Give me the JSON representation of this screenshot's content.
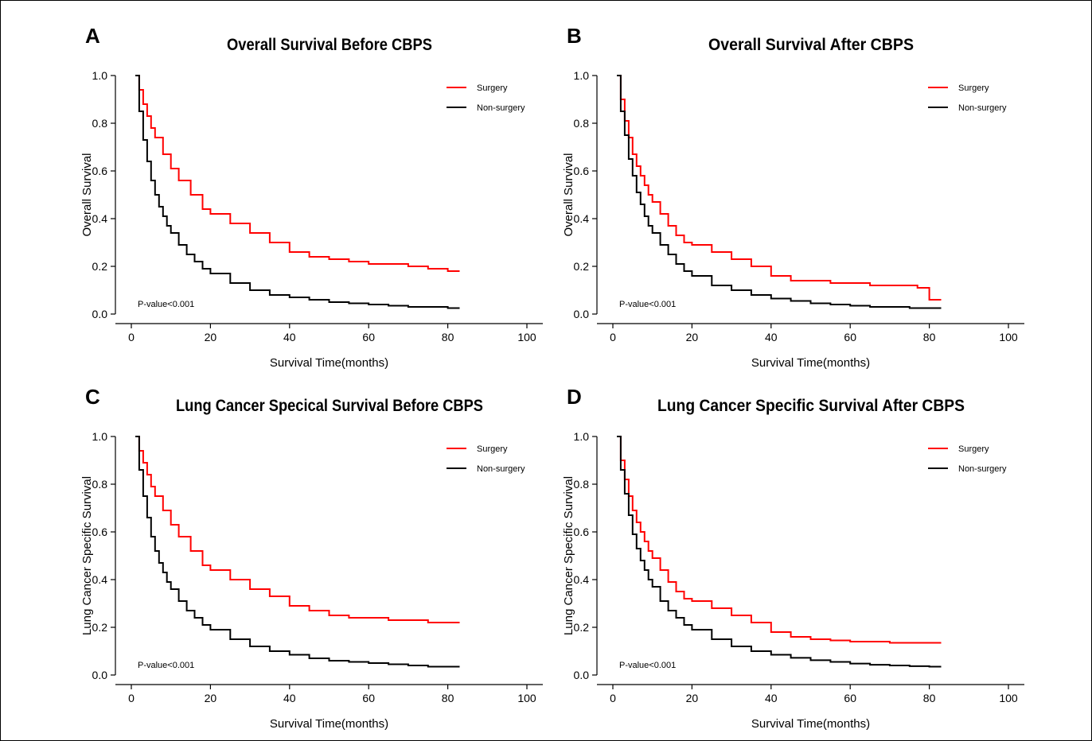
{
  "chart_data": [
    {
      "panel_label": "A",
      "type": "line",
      "step": true,
      "title": "Overall Survival Before CBPS",
      "xlabel": "Survival Time(months)",
      "ylabel": "Overall Survival",
      "xlim": [
        0,
        100
      ],
      "ylim": [
        0,
        1.0
      ],
      "xticks": [
        0,
        20,
        40,
        60,
        80,
        100
      ],
      "yticks": [
        0.0,
        0.2,
        0.4,
        0.6,
        0.8,
        1.0
      ],
      "xtick_labels": [
        "0",
        "20",
        "40",
        "60",
        "80",
        "100"
      ],
      "ytick_labels": [
        "0.0",
        "0.2",
        "0.4",
        "0.6",
        "0.8",
        "1.0"
      ],
      "grid": false,
      "legend_position": "top-right",
      "annotation": "P-value<0.001",
      "series": [
        {
          "name": "Surgery",
          "color": "#ff0000",
          "x": [
            1,
            2,
            3,
            4,
            5,
            6,
            8,
            10,
            12,
            15,
            18,
            20,
            25,
            30,
            35,
            40,
            45,
            50,
            55,
            60,
            65,
            70,
            75,
            80,
            83
          ],
          "y": [
            1.0,
            0.94,
            0.88,
            0.83,
            0.78,
            0.74,
            0.67,
            0.61,
            0.56,
            0.5,
            0.44,
            0.42,
            0.38,
            0.34,
            0.3,
            0.26,
            0.24,
            0.23,
            0.22,
            0.21,
            0.21,
            0.2,
            0.19,
            0.18,
            0.18
          ]
        },
        {
          "name": "Non-surgery",
          "color": "#000000",
          "x": [
            1,
            2,
            3,
            4,
            5,
            6,
            7,
            8,
            9,
            10,
            12,
            14,
            16,
            18,
            20,
            25,
            30,
            35,
            40,
            45,
            50,
            55,
            60,
            65,
            70,
            75,
            80,
            83
          ],
          "y": [
            1.0,
            0.85,
            0.73,
            0.64,
            0.56,
            0.5,
            0.45,
            0.41,
            0.37,
            0.34,
            0.29,
            0.25,
            0.22,
            0.19,
            0.17,
            0.13,
            0.1,
            0.08,
            0.07,
            0.06,
            0.05,
            0.045,
            0.04,
            0.035,
            0.03,
            0.03,
            0.025,
            0.025
          ]
        }
      ]
    },
    {
      "panel_label": "B",
      "type": "line",
      "step": true,
      "title": "Overall Survival After CBPS",
      "xlabel": "Survival Time(months)",
      "ylabel": "Overall Survival",
      "xlim": [
        0,
        100
      ],
      "ylim": [
        0,
        1.0
      ],
      "xticks": [
        0,
        20,
        40,
        60,
        80,
        100
      ],
      "yticks": [
        0.0,
        0.2,
        0.4,
        0.6,
        0.8,
        1.0
      ],
      "xtick_labels": [
        "0",
        "20",
        "40",
        "60",
        "80",
        "100"
      ],
      "ytick_labels": [
        "0.0",
        "0.2",
        "0.4",
        "0.6",
        "0.8",
        "1.0"
      ],
      "grid": false,
      "legend_position": "top-right",
      "annotation": "P-value<0.001",
      "series": [
        {
          "name": "Surgery",
          "color": "#ff0000",
          "x": [
            1,
            2,
            3,
            4,
            5,
            6,
            7,
            8,
            9,
            10,
            12,
            14,
            16,
            18,
            20,
            25,
            30,
            35,
            40,
            45,
            50,
            55,
            60,
            65,
            70,
            77,
            80,
            83
          ],
          "y": [
            1.0,
            0.9,
            0.81,
            0.74,
            0.67,
            0.62,
            0.58,
            0.54,
            0.5,
            0.47,
            0.42,
            0.37,
            0.33,
            0.3,
            0.29,
            0.26,
            0.23,
            0.2,
            0.16,
            0.14,
            0.14,
            0.13,
            0.13,
            0.12,
            0.12,
            0.11,
            0.06,
            0.06
          ]
        },
        {
          "name": "Non-surgery",
          "color": "#000000",
          "x": [
            1,
            2,
            3,
            4,
            5,
            6,
            7,
            8,
            9,
            10,
            12,
            14,
            16,
            18,
            20,
            25,
            30,
            35,
            40,
            45,
            50,
            55,
            60,
            65,
            70,
            75,
            80,
            83
          ],
          "y": [
            1.0,
            0.85,
            0.75,
            0.65,
            0.58,
            0.51,
            0.46,
            0.41,
            0.37,
            0.34,
            0.29,
            0.25,
            0.21,
            0.18,
            0.16,
            0.12,
            0.1,
            0.08,
            0.065,
            0.055,
            0.045,
            0.04,
            0.035,
            0.03,
            0.03,
            0.025,
            0.025,
            0.025
          ]
        }
      ]
    },
    {
      "panel_label": "C",
      "type": "line",
      "step": true,
      "title": "Lung Cancer Specical Survival Before CBPS",
      "xlabel": "Survival Time(months)",
      "ylabel": "Lung Cancer Specific Survival",
      "xlim": [
        0,
        100
      ],
      "ylim": [
        0,
        1.0
      ],
      "xticks": [
        0,
        20,
        40,
        60,
        80,
        100
      ],
      "yticks": [
        0.0,
        0.2,
        0.4,
        0.6,
        0.8,
        1.0
      ],
      "xtick_labels": [
        "0",
        "20",
        "40",
        "60",
        "80",
        "100"
      ],
      "ytick_labels": [
        "0.0",
        "0.2",
        "0.4",
        "0.6",
        "0.8",
        "1.0"
      ],
      "grid": false,
      "legend_position": "top-right",
      "annotation": "P-value<0.001",
      "series": [
        {
          "name": "Surgery",
          "color": "#ff0000",
          "x": [
            1,
            2,
            3,
            4,
            5,
            6,
            8,
            10,
            12,
            15,
            18,
            20,
            25,
            30,
            35,
            40,
            45,
            50,
            55,
            60,
            65,
            70,
            75,
            80,
            83
          ],
          "y": [
            1.0,
            0.94,
            0.89,
            0.84,
            0.79,
            0.75,
            0.69,
            0.63,
            0.58,
            0.52,
            0.46,
            0.44,
            0.4,
            0.36,
            0.33,
            0.29,
            0.27,
            0.25,
            0.24,
            0.24,
            0.23,
            0.23,
            0.22,
            0.22,
            0.22
          ]
        },
        {
          "name": "Non-surgery",
          "color": "#000000",
          "x": [
            1,
            2,
            3,
            4,
            5,
            6,
            7,
            8,
            9,
            10,
            12,
            14,
            16,
            18,
            20,
            25,
            30,
            35,
            40,
            45,
            50,
            55,
            60,
            65,
            70,
            75,
            80,
            83
          ],
          "y": [
            1.0,
            0.86,
            0.75,
            0.66,
            0.58,
            0.52,
            0.47,
            0.43,
            0.39,
            0.36,
            0.31,
            0.27,
            0.24,
            0.21,
            0.19,
            0.15,
            0.12,
            0.1,
            0.085,
            0.07,
            0.06,
            0.055,
            0.05,
            0.045,
            0.04,
            0.035,
            0.035,
            0.035
          ]
        }
      ]
    },
    {
      "panel_label": "D",
      "type": "line",
      "step": true,
      "title": "Lung Cancer Specific Survival After CBPS",
      "xlabel": "Survival Time(months)",
      "ylabel": "Lung Cancer Specific Survival",
      "xlim": [
        0,
        100
      ],
      "ylim": [
        0,
        1.0
      ],
      "xticks": [
        0,
        20,
        40,
        60,
        80,
        100
      ],
      "yticks": [
        0.0,
        0.2,
        0.4,
        0.6,
        0.8,
        1.0
      ],
      "xtick_labels": [
        "0",
        "20",
        "40",
        "60",
        "80",
        "100"
      ],
      "ytick_labels": [
        "0.0",
        "0.2",
        "0.4",
        "0.6",
        "0.8",
        "1.0"
      ],
      "grid": false,
      "legend_position": "top-right",
      "annotation": "P-value<0.001",
      "series": [
        {
          "name": "Surgery",
          "color": "#ff0000",
          "x": [
            1,
            2,
            3,
            4,
            5,
            6,
            7,
            8,
            9,
            10,
            12,
            14,
            16,
            18,
            20,
            25,
            30,
            35,
            40,
            45,
            50,
            55,
            60,
            65,
            70,
            75,
            80,
            83
          ],
          "y": [
            1.0,
            0.9,
            0.82,
            0.75,
            0.69,
            0.64,
            0.6,
            0.56,
            0.52,
            0.49,
            0.44,
            0.39,
            0.35,
            0.32,
            0.31,
            0.28,
            0.25,
            0.22,
            0.18,
            0.16,
            0.15,
            0.145,
            0.14,
            0.14,
            0.135,
            0.135,
            0.135,
            0.135
          ]
        },
        {
          "name": "Non-surgery",
          "color": "#000000",
          "x": [
            1,
            2,
            3,
            4,
            5,
            6,
            7,
            8,
            9,
            10,
            12,
            14,
            16,
            18,
            20,
            25,
            30,
            35,
            40,
            45,
            50,
            55,
            60,
            65,
            70,
            75,
            80,
            83
          ],
          "y": [
            1.0,
            0.86,
            0.76,
            0.67,
            0.59,
            0.53,
            0.48,
            0.44,
            0.4,
            0.37,
            0.31,
            0.27,
            0.24,
            0.21,
            0.19,
            0.15,
            0.12,
            0.1,
            0.085,
            0.072,
            0.062,
            0.055,
            0.048,
            0.043,
            0.04,
            0.037,
            0.035,
            0.035
          ]
        }
      ]
    }
  ]
}
